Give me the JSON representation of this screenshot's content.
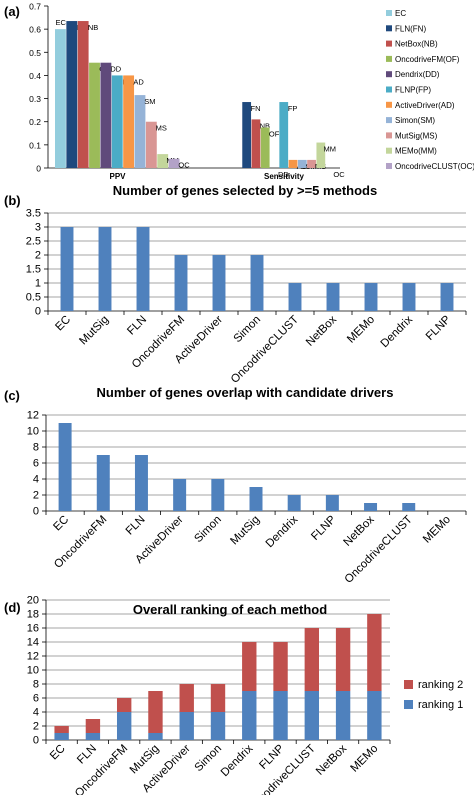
{
  "panel_labels": [
    "(a)",
    "(b)",
    "(c)",
    "(d)"
  ],
  "colors": {
    "blue": "#4f81bd",
    "red": "#c0504d",
    "grid": "#868686",
    "method_colors": [
      "#93cddd",
      "#1f497d",
      "#c0504d",
      "#9bbb59",
      "#604a7b",
      "#4bacc6",
      "#f79646",
      "#95b3d7",
      "#d99694",
      "#c3d69b",
      "#b3a2c7"
    ]
  },
  "chart_data": [
    {
      "type": "bar",
      "panel": "(a)",
      "title": "",
      "categories": [
        "PPV",
        "Sensitivity"
      ],
      "ylim": [
        0,
        0.7
      ],
      "yticks": [
        "0",
        "0.1",
        "0.2",
        "0.3",
        "0.4",
        "0.5",
        "0.6",
        "0.7"
      ],
      "grid": false,
      "legend_position": "right",
      "series": [
        {
          "name": "EC",
          "abbr": "EC",
          "values": [
            0.6,
            null
          ]
        },
        {
          "name": "FLN(FN)",
          "abbr": "FN",
          "values": [
            0.635,
            0.285
          ]
        },
        {
          "name": "NetBox(NB)",
          "abbr": "NB",
          "values": [
            0.635,
            0.21
          ]
        },
        {
          "name": "OncodriveFM(OF)",
          "abbr": "OF",
          "values": [
            0.455,
            0.175
          ]
        },
        {
          "name": "Dendrix(DD)",
          "abbr": "DD",
          "values": [
            0.455,
            0.0
          ]
        },
        {
          "name": "FLNP(FP)",
          "abbr": "FP",
          "values": [
            0.4,
            0.285
          ]
        },
        {
          "name": "ActiveDriver(AD)",
          "abbr": "AD",
          "values": [
            0.4,
            0.035
          ]
        },
        {
          "name": "Simon(SM)",
          "abbr": "SM",
          "values": [
            0.315,
            0.035
          ]
        },
        {
          "name": "MutSig(MS)",
          "abbr": "MS",
          "values": [
            0.2,
            0.035
          ]
        },
        {
          "name": "MEMo(MM)",
          "abbr": "MM",
          "values": [
            0.06,
            0.11
          ]
        },
        {
          "name": "OncodriveCLUST(OC)",
          "abbr": "OC",
          "values": [
            0.04,
            0.0
          ]
        }
      ]
    },
    {
      "type": "bar",
      "panel": "(b)",
      "title": "Number of genes selected by >=5 methods",
      "categories": [
        "EC",
        "MutSig",
        "FLN",
        "OncodriveFM",
        "ActiveDriver",
        "Simon",
        "OncodriveCLUST",
        "NetBox",
        "MEMo",
        "Dendrix",
        "FLNP"
      ],
      "values": [
        3,
        3,
        3,
        2,
        2,
        2,
        1,
        1,
        1,
        1,
        1
      ],
      "ylim": [
        0,
        3.5
      ],
      "yticks": [
        "0",
        "0.5",
        "1",
        "1.5",
        "2",
        "2.5",
        "3",
        "3.5"
      ],
      "grid": true
    },
    {
      "type": "bar",
      "panel": "(c)",
      "title": "Number of genes overlap with candidate drivers",
      "categories": [
        "EC",
        "OncodriveFM",
        "FLN",
        "ActiveDriver",
        "Simon",
        "MutSig",
        "Dendrix",
        "FLNP",
        "NetBox",
        "OncodriveCLUST",
        "MEMo"
      ],
      "values": [
        11,
        7,
        7,
        4,
        4,
        3,
        2,
        2,
        1,
        1,
        0
      ],
      "ylim": [
        0,
        12
      ],
      "yticks": [
        "0",
        "2",
        "4",
        "6",
        "8",
        "10",
        "12"
      ],
      "grid": true
    },
    {
      "type": "bar",
      "stacked": true,
      "panel": "(d)",
      "title": "Overall ranking of each method",
      "categories": [
        "EC",
        "FLN",
        "OncodriveFM",
        "MutSig",
        "ActiveDriver",
        "Simon",
        "Dendrix",
        "FLNP",
        "OncodriveCLUST",
        "NetBox",
        "MEMo"
      ],
      "series": [
        {
          "name": "ranking 1",
          "values": [
            1,
            1,
            4,
            1,
            4,
            4,
            7,
            7,
            7,
            7,
            7
          ]
        },
        {
          "name": "ranking 2",
          "values": [
            1,
            2,
            2,
            6,
            4,
            4,
            7,
            7,
            9,
            9,
            11
          ]
        }
      ],
      "ylim": [
        0,
        20
      ],
      "yticks": [
        "0",
        "2",
        "4",
        "6",
        "8",
        "10",
        "12",
        "14",
        "16",
        "18",
        "20"
      ],
      "grid": true,
      "legend_position": "right"
    }
  ]
}
